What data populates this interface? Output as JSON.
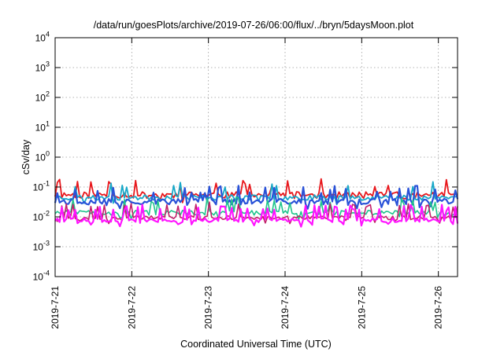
{
  "chart_data": {
    "type": "line",
    "title": "/data/run/goesPlots/archive/2019-07-26/06:00/flux/../bryn/5daysMoon.plot",
    "xlabel": "Coordinated Universal Time (UTC)",
    "ylabel": "cSv/day",
    "yscale": "log",
    "ylim": [
      0.0001,
      10000
    ],
    "y_ticks": [
      {
        "value": 0.0001,
        "base": "10",
        "exp": "-4"
      },
      {
        "value": 0.001,
        "base": "10",
        "exp": "-3"
      },
      {
        "value": 0.01,
        "base": "10",
        "exp": "-2"
      },
      {
        "value": 0.1,
        "base": "10",
        "exp": "-1"
      },
      {
        "value": 1,
        "base": "10",
        "exp": "0"
      },
      {
        "value": 10,
        "base": "10",
        "exp": "1"
      },
      {
        "value": 100,
        "base": "10",
        "exp": "2"
      },
      {
        "value": 1000,
        "base": "10",
        "exp": "3"
      },
      {
        "value": 10000,
        "base": "10",
        "exp": "4"
      }
    ],
    "xlim": [
      "2019-07-21",
      "2019-07-26T06:00"
    ],
    "x_ticks": [
      "2019-7-21",
      "2019-7-22",
      "2019-7-23",
      "2019-7-24",
      "2019-7-25",
      "2019-7-26"
    ],
    "grid": true,
    "series": [
      {
        "color": "#e8161b",
        "base": 0.055,
        "amp": 0.25,
        "spikes": 0.25,
        "seed": 11,
        "width": 1.8
      },
      {
        "color": "#18a8c8",
        "base": 0.045,
        "amp": 0.2,
        "spikes": 0.2,
        "seed": 23,
        "width": 1.8
      },
      {
        "color": "#2a52d8",
        "base": 0.033,
        "amp": 0.22,
        "spikes": 0.55,
        "seed": 37,
        "width": 2.2
      },
      {
        "color": "#1fc48c",
        "base": 0.014,
        "amp": 0.18,
        "spikes": 0.35,
        "seed": 51,
        "width": 1.6
      },
      {
        "color": "#c21f6a",
        "base": 0.0095,
        "amp": 0.15,
        "spikes": 0.35,
        "seed": 67,
        "width": 1.6
      },
      {
        "color": "#ff14ff",
        "base": 0.0078,
        "amp": 0.15,
        "spikes": 0.6,
        "seed": 79,
        "width": 2.2
      }
    ]
  }
}
